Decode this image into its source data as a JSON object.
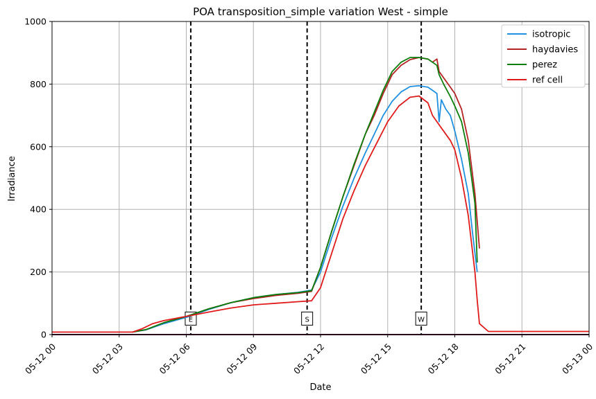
{
  "chart_data": {
    "type": "line",
    "title": "POA transposition_simple variation West - simple",
    "xlabel": "Date",
    "ylabel": "Irradiance",
    "ylim": [
      0,
      1000
    ],
    "xlim": [
      0,
      24
    ],
    "grid": true,
    "legend_position": "top-right",
    "x_ticks": [
      {
        "value": 0,
        "label": "05-12 00"
      },
      {
        "value": 3,
        "label": "05-12 03"
      },
      {
        "value": 6,
        "label": "05-12 06"
      },
      {
        "value": 9,
        "label": "05-12 09"
      },
      {
        "value": 12,
        "label": "05-12 12"
      },
      {
        "value": 15,
        "label": "05-12 15"
      },
      {
        "value": 18,
        "label": "05-12 18"
      },
      {
        "value": 21,
        "label": "05-12 21"
      },
      {
        "value": 24,
        "label": "05-13 00"
      }
    ],
    "y_ticks": [
      0,
      200,
      400,
      600,
      800,
      1000
    ],
    "x_unit": "hours since 05-12 00",
    "series": [
      {
        "name": "isotropic",
        "color": "#1f8fe0",
        "points": [
          [
            3.6,
            8
          ],
          [
            4.2,
            15
          ],
          [
            5.0,
            35
          ],
          [
            6.0,
            55
          ],
          [
            7.0,
            80
          ],
          [
            8.0,
            102
          ],
          [
            9.0,
            118
          ],
          [
            10.0,
            128
          ],
          [
            11.0,
            135
          ],
          [
            11.6,
            142
          ],
          [
            12.0,
            200
          ],
          [
            12.5,
            310
          ],
          [
            13.0,
            410
          ],
          [
            13.5,
            500
          ],
          [
            14.0,
            580
          ],
          [
            14.4,
            640
          ],
          [
            14.8,
            700
          ],
          [
            15.2,
            745
          ],
          [
            15.6,
            775
          ],
          [
            16.0,
            792
          ],
          [
            16.4,
            795
          ],
          [
            16.8,
            790
          ],
          [
            17.0,
            780
          ],
          [
            17.2,
            770
          ],
          [
            17.3,
            680
          ],
          [
            17.4,
            750
          ],
          [
            17.6,
            720
          ],
          [
            17.8,
            700
          ],
          [
            18.0,
            650
          ],
          [
            18.3,
            560
          ],
          [
            18.6,
            450
          ],
          [
            18.8,
            320
          ],
          [
            19.0,
            200
          ]
        ]
      },
      {
        "name": "haydavies",
        "color": "#b22222",
        "points": [
          [
            3.6,
            8
          ],
          [
            4.2,
            16
          ],
          [
            5.0,
            38
          ],
          [
            6.0,
            58
          ],
          [
            7.0,
            82
          ],
          [
            8.0,
            102
          ],
          [
            9.0,
            115
          ],
          [
            10.0,
            125
          ],
          [
            11.0,
            132
          ],
          [
            11.6,
            138
          ],
          [
            12.0,
            215
          ],
          [
            12.5,
            330
          ],
          [
            13.0,
            440
          ],
          [
            13.5,
            540
          ],
          [
            14.0,
            640
          ],
          [
            14.4,
            700
          ],
          [
            14.8,
            770
          ],
          [
            15.2,
            830
          ],
          [
            15.6,
            860
          ],
          [
            16.0,
            878
          ],
          [
            16.4,
            885
          ],
          [
            16.8,
            880
          ],
          [
            17.0,
            870
          ],
          [
            17.2,
            880
          ],
          [
            17.3,
            840
          ],
          [
            17.5,
            820
          ],
          [
            17.8,
            790
          ],
          [
            18.0,
            770
          ],
          [
            18.3,
            720
          ],
          [
            18.6,
            620
          ],
          [
            18.9,
            450
          ],
          [
            19.1,
            275
          ]
        ]
      },
      {
        "name": "perez",
        "color": "#0a7d0a",
        "points": [
          [
            3.6,
            8
          ],
          [
            4.2,
            16
          ],
          [
            5.0,
            38
          ],
          [
            6.0,
            58
          ],
          [
            7.0,
            82
          ],
          [
            8.0,
            102
          ],
          [
            9.0,
            118
          ],
          [
            10.0,
            128
          ],
          [
            11.0,
            134
          ],
          [
            11.6,
            140
          ],
          [
            12.0,
            215
          ],
          [
            12.5,
            330
          ],
          [
            13.0,
            440
          ],
          [
            13.5,
            545
          ],
          [
            14.0,
            640
          ],
          [
            14.4,
            710
          ],
          [
            14.8,
            780
          ],
          [
            15.2,
            840
          ],
          [
            15.6,
            870
          ],
          [
            16.0,
            885
          ],
          [
            16.4,
            885
          ],
          [
            16.8,
            880
          ],
          [
            17.0,
            870
          ],
          [
            17.2,
            860
          ],
          [
            17.3,
            830
          ],
          [
            17.5,
            800
          ],
          [
            17.8,
            760
          ],
          [
            18.0,
            730
          ],
          [
            18.3,
            680
          ],
          [
            18.6,
            580
          ],
          [
            18.9,
            420
          ],
          [
            19.0,
            230
          ]
        ]
      },
      {
        "name": "ref cell",
        "color": "#e01a1a",
        "points": [
          [
            0,
            8
          ],
          [
            3.6,
            8
          ],
          [
            4.0,
            18
          ],
          [
            4.5,
            35
          ],
          [
            5.0,
            45
          ],
          [
            6.0,
            58
          ],
          [
            7.0,
            72
          ],
          [
            8.0,
            85
          ],
          [
            9.0,
            95
          ],
          [
            10.0,
            100
          ],
          [
            11.0,
            105
          ],
          [
            11.6,
            108
          ],
          [
            12.0,
            150
          ],
          [
            12.5,
            260
          ],
          [
            13.0,
            370
          ],
          [
            13.5,
            460
          ],
          [
            14.0,
            540
          ],
          [
            14.5,
            610
          ],
          [
            15.0,
            680
          ],
          [
            15.5,
            730
          ],
          [
            16.0,
            758
          ],
          [
            16.4,
            762
          ],
          [
            16.8,
            740
          ],
          [
            17.0,
            700
          ],
          [
            17.4,
            660
          ],
          [
            17.8,
            620
          ],
          [
            18.0,
            590
          ],
          [
            18.3,
            500
          ],
          [
            18.6,
            380
          ],
          [
            18.9,
            200
          ],
          [
            19.0,
            110
          ],
          [
            19.1,
            35
          ],
          [
            19.5,
            10
          ],
          [
            24,
            10
          ]
        ]
      }
    ],
    "annotations": [
      {
        "x": 6.2,
        "label": "E"
      },
      {
        "x": 11.4,
        "label": "S"
      },
      {
        "x": 16.5,
        "label": "W"
      }
    ]
  }
}
